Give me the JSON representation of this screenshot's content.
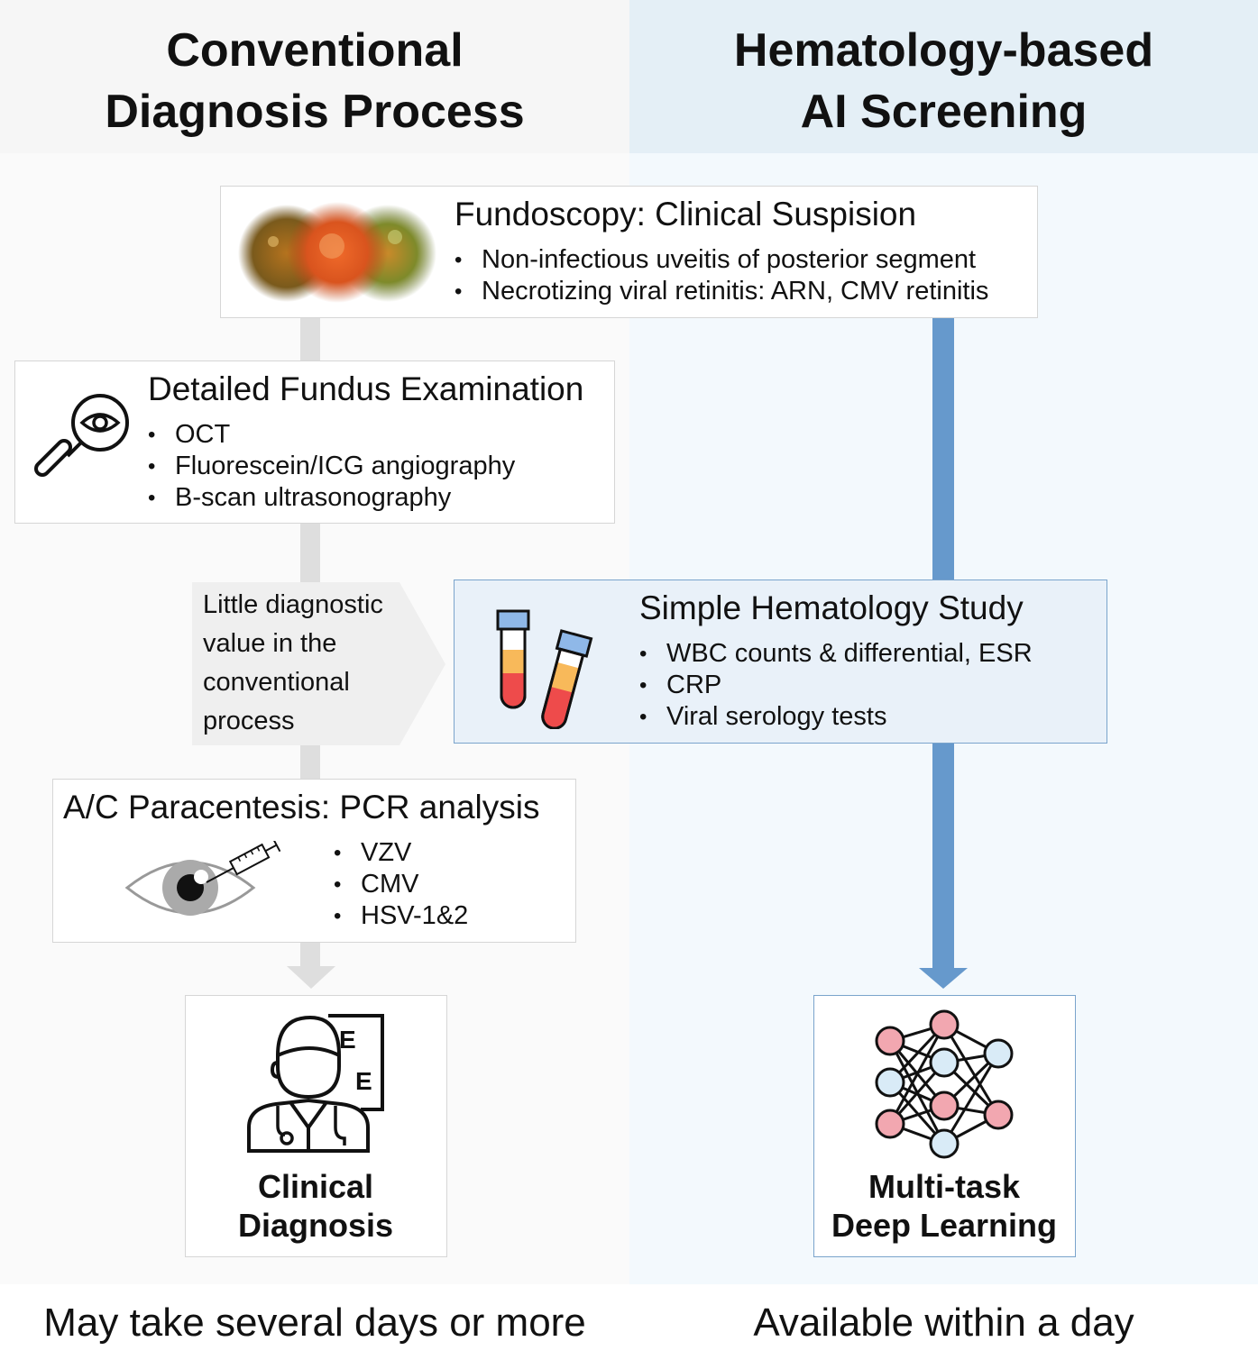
{
  "headers": {
    "left": [
      "Conventional",
      "Diagnosis Process"
    ],
    "right": [
      "Hematology-based",
      "AI Screening"
    ]
  },
  "fundoscopy": {
    "title": "Fundoscopy: Clinical Suspision",
    "bullets": [
      "Non-infectious uveitis of posterior segment",
      "Necrotizing viral retinitis: ARN, CMV retinitis"
    ]
  },
  "fundus_exam": {
    "title": "Detailed Fundus Examination",
    "bullets": [
      "OCT",
      "Fluorescein/ICG angiography",
      "B-scan ultrasonography"
    ]
  },
  "callout": {
    "text": "Little diagnostic value in the conventional process"
  },
  "hematology": {
    "title": "Simple Hematology Study",
    "bullets": [
      "WBC counts & differential, ESR",
      "CRP",
      "Viral serology tests"
    ]
  },
  "paracentesis": {
    "title": "A/C Paracentesis: PCR analysis",
    "bullets": [
      "VZV",
      "CMV",
      "HSV-1&2"
    ]
  },
  "clinical_diagnosis": {
    "label": [
      "Clinical",
      "Diagnosis"
    ],
    "chart_letters": [
      "E",
      "E"
    ]
  },
  "deep_learning": {
    "label": [
      "Multi-task",
      "Deep Learning"
    ]
  },
  "footer": {
    "left": "May take several days or more",
    "right": "Available within a day"
  },
  "colors": {
    "flow_blue": "#6699cc",
    "flow_gray": "#dedede",
    "node_pink": "#f2a7b0",
    "node_blue": "#d9ebf7",
    "tube_red": "#ee4b4b",
    "tube_orange": "#f8b95a",
    "tube_cap": "#8fb8e8"
  }
}
